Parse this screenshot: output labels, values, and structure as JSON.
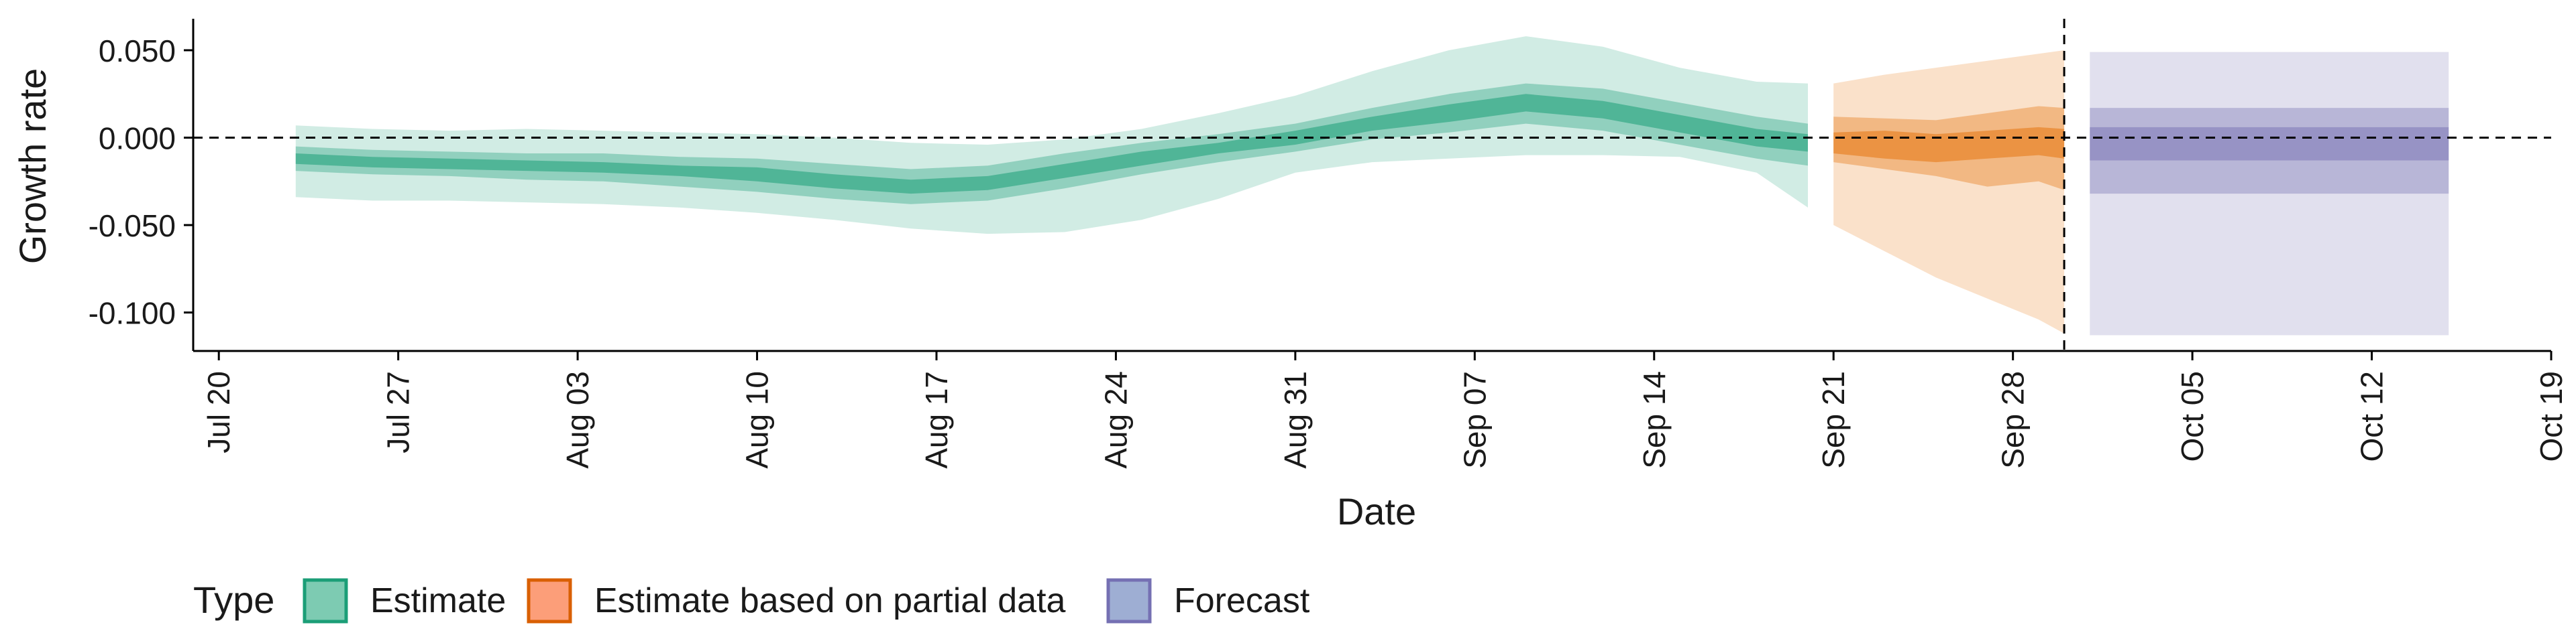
{
  "chart_data": {
    "type": "area",
    "xlabel": "Date",
    "ylabel": "Growth rate",
    "x_ticks": [
      "Jul 20",
      "Jul 27",
      "Aug 03",
      "Aug 10",
      "Aug 17",
      "Aug 24",
      "Aug 31",
      "Sep 07",
      "Sep 14",
      "Sep 21",
      "Sep 28",
      "Oct 05",
      "Oct 12",
      "Oct 19"
    ],
    "x_tick_dates": [
      "2020-07-20",
      "2020-07-27",
      "2020-08-03",
      "2020-08-10",
      "2020-08-17",
      "2020-08-24",
      "2020-08-31",
      "2020-09-07",
      "2020-09-14",
      "2020-09-21",
      "2020-09-28",
      "2020-10-05",
      "2020-10-12",
      "2020-10-19"
    ],
    "xlim": [
      "2020-07-19",
      "2020-10-19"
    ],
    "y_ticks": [
      0.05,
      0.0,
      -0.05,
      -0.1
    ],
    "y_tick_labels": [
      "0.050",
      "0.000",
      "-0.050",
      "-0.100"
    ],
    "ylim": [
      -0.122,
      0.068
    ],
    "reference_hline": 0.0,
    "reference_vline": "2020-09-30",
    "grid": false,
    "legend": {
      "title": "Type",
      "position": "bottom-left",
      "items": [
        {
          "label": "Estimate",
          "fill": "#66c2a5",
          "stroke": "#1b9e77"
        },
        {
          "label": "Estimate based on partial data",
          "fill": "#fc8d62",
          "stroke": "#d95f02"
        },
        {
          "label": "Forecast",
          "fill": "#8da0cb",
          "stroke": "#7570b3"
        }
      ]
    },
    "series": [
      {
        "name": "Estimate",
        "color": "#1b9e77",
        "x": [
          "2020-07-23",
          "2020-07-26",
          "2020-07-29",
          "2020-08-01",
          "2020-08-04",
          "2020-08-07",
          "2020-08-10",
          "2020-08-13",
          "2020-08-16",
          "2020-08-19",
          "2020-08-22",
          "2020-08-25",
          "2020-08-28",
          "2020-08-31",
          "2020-09-03",
          "2020-09-06",
          "2020-09-09",
          "2020-09-12",
          "2020-09-15",
          "2020-09-18",
          "2020-09-20"
        ],
        "median": [
          -0.012,
          -0.014,
          -0.015,
          -0.016,
          -0.017,
          -0.019,
          -0.021,
          -0.025,
          -0.028,
          -0.026,
          -0.019,
          -0.012,
          -0.006,
          0.0,
          0.008,
          0.014,
          0.02,
          0.016,
          0.008,
          0.0,
          -0.003
        ],
        "ci20_low": [
          -0.015,
          -0.017,
          -0.018,
          -0.019,
          -0.02,
          -0.022,
          -0.025,
          -0.029,
          -0.032,
          -0.03,
          -0.023,
          -0.016,
          -0.009,
          -0.004,
          0.004,
          0.009,
          0.015,
          0.011,
          0.003,
          -0.005,
          -0.008
        ],
        "ci20_high": [
          -0.009,
          -0.011,
          -0.012,
          -0.013,
          -0.014,
          -0.016,
          -0.017,
          -0.021,
          -0.024,
          -0.022,
          -0.015,
          -0.008,
          -0.003,
          0.004,
          0.012,
          0.019,
          0.025,
          0.021,
          0.013,
          0.005,
          0.002
        ],
        "ci50_low": [
          -0.019,
          -0.021,
          -0.022,
          -0.024,
          -0.025,
          -0.028,
          -0.031,
          -0.035,
          -0.038,
          -0.036,
          -0.029,
          -0.021,
          -0.014,
          -0.008,
          -0.001,
          0.003,
          0.008,
          0.004,
          -0.004,
          -0.012,
          -0.016
        ],
        "ci50_high": [
          -0.005,
          -0.007,
          -0.008,
          -0.009,
          -0.009,
          -0.011,
          -0.012,
          -0.015,
          -0.018,
          -0.016,
          -0.009,
          -0.003,
          0.002,
          0.008,
          0.017,
          0.025,
          0.031,
          0.028,
          0.02,
          0.012,
          0.008
        ],
        "ci90_low": [
          -0.034,
          -0.036,
          -0.036,
          -0.037,
          -0.038,
          -0.04,
          -0.043,
          -0.047,
          -0.052,
          -0.055,
          -0.054,
          -0.047,
          -0.035,
          -0.02,
          -0.014,
          -0.012,
          -0.01,
          -0.01,
          -0.011,
          -0.02,
          -0.04
        ],
        "ci90_high": [
          0.007,
          0.005,
          0.004,
          0.005,
          0.004,
          0.003,
          0.002,
          0.0,
          -0.003,
          -0.004,
          -0.001,
          0.005,
          0.014,
          0.024,
          0.038,
          0.05,
          0.058,
          0.052,
          0.04,
          0.032,
          0.031
        ]
      },
      {
        "name": "Estimate based on partial data",
        "color": "#d95f02",
        "x": [
          "2020-09-21",
          "2020-09-23",
          "2020-09-25",
          "2020-09-27",
          "2020-09-29",
          "2020-09-30"
        ],
        "median": [
          -0.004,
          -0.006,
          -0.007,
          -0.006,
          -0.004,
          -0.005
        ],
        "ci20_low": [
          -0.009,
          -0.012,
          -0.014,
          -0.012,
          -0.01,
          -0.012
        ],
        "ci20_high": [
          0.003,
          0.004,
          0.002,
          0.004,
          0.006,
          0.005
        ],
        "ci50_low": [
          -0.014,
          -0.018,
          -0.022,
          -0.028,
          -0.025,
          -0.03
        ],
        "ci50_high": [
          0.012,
          0.011,
          0.01,
          0.014,
          0.018,
          0.017
        ],
        "ci90_low": [
          -0.05,
          -0.065,
          -0.08,
          -0.092,
          -0.104,
          -0.112
        ],
        "ci90_high": [
          0.031,
          0.036,
          0.04,
          0.044,
          0.048,
          0.05
        ]
      },
      {
        "name": "Forecast",
        "color": "#7570b3",
        "x": [
          "2020-10-01",
          "2020-10-15"
        ],
        "median": [
          -0.004,
          -0.004
        ],
        "ci20_low": [
          -0.013,
          -0.013
        ],
        "ci20_high": [
          0.006,
          0.006
        ],
        "ci50_low": [
          -0.032,
          -0.032
        ],
        "ci50_high": [
          0.017,
          0.017
        ],
        "ci90_low": [
          -0.113,
          -0.113
        ],
        "ci90_high": [
          0.049,
          0.049
        ]
      }
    ]
  }
}
